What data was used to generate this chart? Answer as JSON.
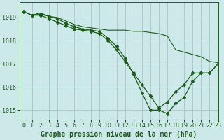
{
  "title": "Graphe pression niveau de la mer (hPa)",
  "bg_color": "#cce8e8",
  "grid_color": "#aacccc",
  "line_color": "#1e5c1e",
  "xlim": [
    -0.5,
    23
  ],
  "ylim": [
    1014.6,
    1019.65
  ],
  "yticks": [
    1015,
    1016,
    1017,
    1018,
    1019
  ],
  "xticks": [
    0,
    1,
    2,
    3,
    4,
    5,
    6,
    7,
    8,
    9,
    10,
    11,
    12,
    13,
    14,
    15,
    16,
    17,
    18,
    19,
    20,
    21,
    22,
    23
  ],
  "series": {
    "line1": [
      1019.25,
      1019.1,
      1019.2,
      1019.05,
      1019.0,
      1018.85,
      1018.7,
      1018.6,
      1018.55,
      1018.5,
      1018.45,
      1018.45,
      1018.45,
      1018.4,
      1018.4,
      1018.35,
      1018.3,
      1018.2,
      1017.6,
      1017.5,
      1017.4,
      1017.3,
      1017.1,
      1017.05
    ],
    "line2": [
      1019.25,
      1019.1,
      1019.15,
      1019.05,
      1018.95,
      1018.75,
      1018.6,
      1018.5,
      1018.45,
      1018.4,
      1018.1,
      1017.75,
      1017.25,
      1016.55,
      1015.75,
      1015.0,
      1015.0,
      1014.85,
      1015.3,
      1015.55,
      1016.25,
      1016.6,
      1016.6,
      1017.0
    ],
    "line3": [
      1019.25,
      1019.1,
      1019.1,
      1018.95,
      1018.8,
      1018.65,
      1018.5,
      1018.45,
      1018.4,
      1018.3,
      1018.0,
      1017.6,
      1017.1,
      1016.6,
      1016.1,
      1015.6,
      1015.1,
      1015.35,
      1015.8,
      1016.1,
      1016.6,
      1016.6,
      1016.6,
      1017.0
    ]
  },
  "title_fontsize": 7,
  "tick_fontsize": 6
}
